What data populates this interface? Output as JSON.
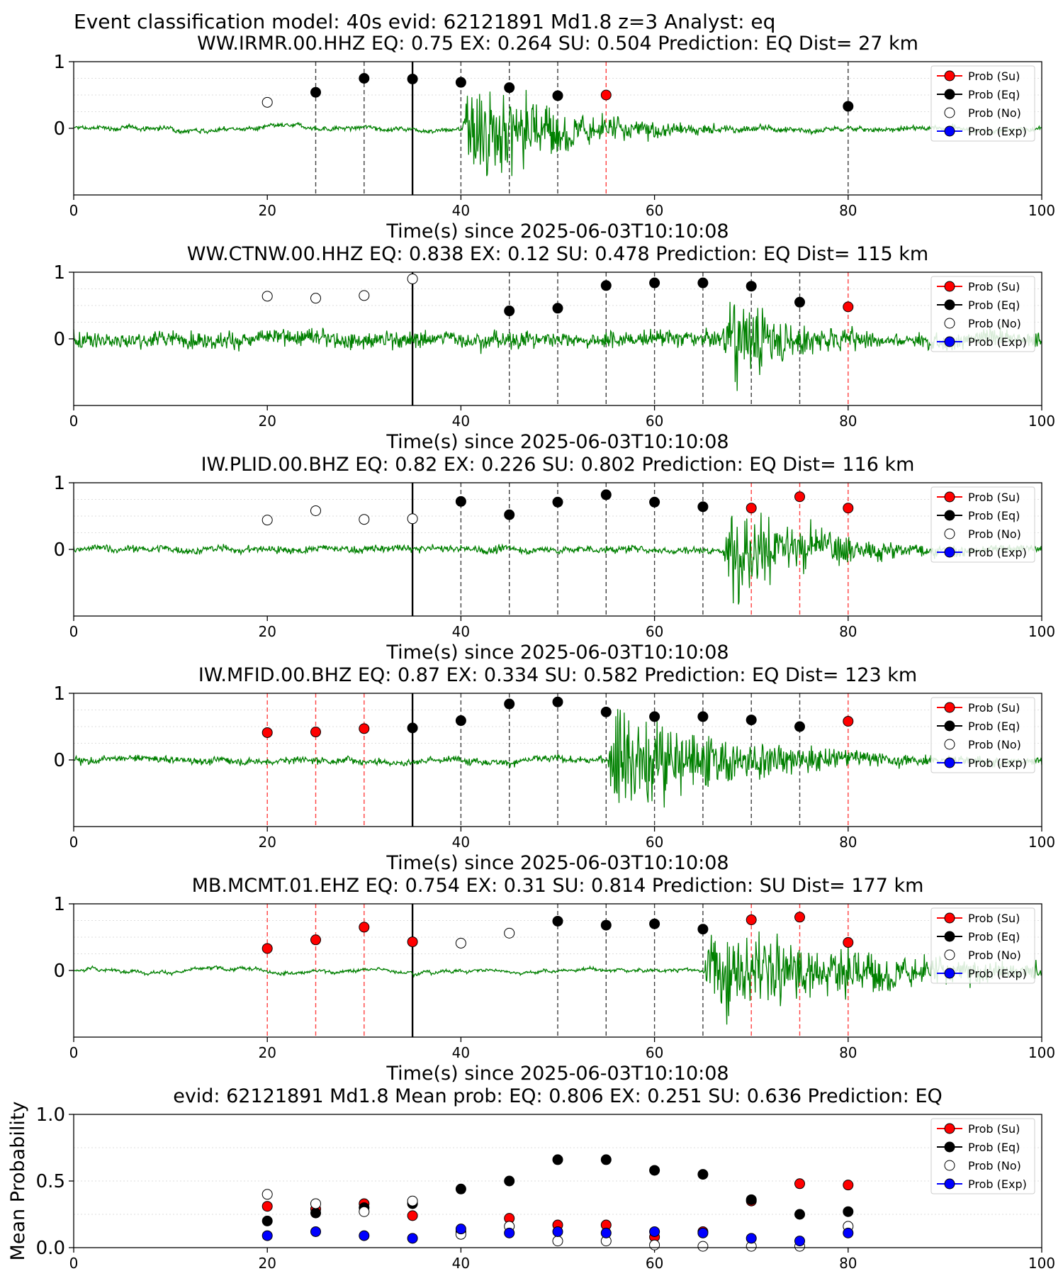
{
  "suptitle": "Event classification model: 40s evid: 62121891 Md1.8 z=3 Analyst: eq",
  "legend": [
    "Prob (Su)",
    "Prob (Eq)",
    "Prob (No)",
    "Prob (Exp)"
  ],
  "colors": {
    "su": "#ff0000",
    "eq": "#000000",
    "no": "#ffffff",
    "exp": "#0000ff",
    "trace": "#008000"
  },
  "chart_data": [
    {
      "type": "line",
      "title": "WW.IRMR.00.HHZ   EQ: 0.75  EX: 0.264  SU: 0.504   Prediction: EQ    Dist= 27 km",
      "xlabel": "Time(s) since 2025-06-03T10:10:08",
      "ylabel": "",
      "xlim": [
        0,
        100
      ],
      "ylim": [
        -1,
        1
      ],
      "xticks": [
        "0",
        "20",
        "40",
        "60",
        "80",
        "100"
      ],
      "yticks": [
        "1",
        "0"
      ],
      "onset": 35,
      "arrival": 40,
      "amp": 0.9,
      "decay": 10,
      "noise": 0.03,
      "points": [
        {
          "t": 20,
          "p": 0.39,
          "cls": "no"
        },
        {
          "t": 25,
          "p": 0.54,
          "cls": "eq"
        },
        {
          "t": 30,
          "p": 0.75,
          "cls": "eq"
        },
        {
          "t": 35,
          "p": 0.74,
          "cls": "eq"
        },
        {
          "t": 40,
          "p": 0.69,
          "cls": "eq"
        },
        {
          "t": 45,
          "p": 0.61,
          "cls": "eq"
        },
        {
          "t": 50,
          "p": 0.49,
          "cls": "eq"
        },
        {
          "t": 55,
          "p": 0.5,
          "cls": "su"
        },
        {
          "t": 80,
          "p": 0.33,
          "cls": "eq"
        }
      ]
    },
    {
      "type": "line",
      "title": "WW.CTNW.00.HHZ   EQ: 0.838  EX: 0.12  SU: 0.478   Prediction: EQ    Dist= 115 km",
      "xlabel": "Time(s) since 2025-06-03T10:10:08",
      "ylabel": "",
      "xlim": [
        0,
        100
      ],
      "ylim": [
        -1,
        1
      ],
      "xticks": [
        "0",
        "20",
        "40",
        "60",
        "80",
        "100"
      ],
      "yticks": [
        "1",
        "0"
      ],
      "onset": 35,
      "arrival": 67,
      "amp": 0.85,
      "decay": 6,
      "noise": 0.12,
      "points": [
        {
          "t": 20,
          "p": 0.64,
          "cls": "no"
        },
        {
          "t": 25,
          "p": 0.61,
          "cls": "no"
        },
        {
          "t": 30,
          "p": 0.65,
          "cls": "no"
        },
        {
          "t": 35,
          "p": 0.9,
          "cls": "no"
        },
        {
          "t": 45,
          "p": 0.42,
          "cls": "eq"
        },
        {
          "t": 50,
          "p": 0.46,
          "cls": "eq"
        },
        {
          "t": 55,
          "p": 0.8,
          "cls": "eq"
        },
        {
          "t": 60,
          "p": 0.84,
          "cls": "eq"
        },
        {
          "t": 65,
          "p": 0.84,
          "cls": "eq"
        },
        {
          "t": 70,
          "p": 0.79,
          "cls": "eq"
        },
        {
          "t": 75,
          "p": 0.55,
          "cls": "eq"
        },
        {
          "t": 80,
          "p": 0.48,
          "cls": "su"
        }
      ]
    },
    {
      "type": "line",
      "title": "IW.PLID.00.BHZ   EQ: 0.82  EX: 0.226  SU: 0.802   Prediction: EQ    Dist= 116 km",
      "xlabel": "Time(s) since 2025-06-03T10:10:08",
      "ylabel": "",
      "xlim": [
        0,
        100
      ],
      "ylim": [
        -1,
        1
      ],
      "xticks": [
        "0",
        "20",
        "40",
        "60",
        "80",
        "100"
      ],
      "yticks": [
        "1",
        "0"
      ],
      "onset": 35,
      "arrival": 67,
      "amp": 0.8,
      "decay": 9,
      "noise": 0.05,
      "points": [
        {
          "t": 20,
          "p": 0.44,
          "cls": "no"
        },
        {
          "t": 25,
          "p": 0.58,
          "cls": "no"
        },
        {
          "t": 30,
          "p": 0.45,
          "cls": "no"
        },
        {
          "t": 35,
          "p": 0.46,
          "cls": "no"
        },
        {
          "t": 40,
          "p": 0.72,
          "cls": "eq"
        },
        {
          "t": 45,
          "p": 0.52,
          "cls": "eq"
        },
        {
          "t": 50,
          "p": 0.71,
          "cls": "eq"
        },
        {
          "t": 55,
          "p": 0.82,
          "cls": "eq"
        },
        {
          "t": 60,
          "p": 0.71,
          "cls": "eq"
        },
        {
          "t": 65,
          "p": 0.64,
          "cls": "eq"
        },
        {
          "t": 70,
          "p": 0.62,
          "cls": "su"
        },
        {
          "t": 75,
          "p": 0.79,
          "cls": "su"
        },
        {
          "t": 80,
          "p": 0.62,
          "cls": "su"
        }
      ]
    },
    {
      "type": "line",
      "title": "IW.MFID.00.BHZ   EQ: 0.87  EX: 0.334  SU: 0.582   Prediction: EQ    Dist= 123 km",
      "xlabel": "Time(s) since 2025-06-03T10:10:08",
      "ylabel": "",
      "xlim": [
        0,
        100
      ],
      "ylim": [
        -1,
        1
      ],
      "xticks": [
        "0",
        "20",
        "40",
        "60",
        "80",
        "100"
      ],
      "yticks": [
        "1",
        "0"
      ],
      "onset": 35,
      "arrival": 55,
      "amp": 0.95,
      "decay": 12,
      "noise": 0.05,
      "points": [
        {
          "t": 20,
          "p": 0.41,
          "cls": "su"
        },
        {
          "t": 25,
          "p": 0.42,
          "cls": "su"
        },
        {
          "t": 30,
          "p": 0.47,
          "cls": "su"
        },
        {
          "t": 35,
          "p": 0.48,
          "cls": "eq"
        },
        {
          "t": 40,
          "p": 0.59,
          "cls": "eq"
        },
        {
          "t": 45,
          "p": 0.84,
          "cls": "eq"
        },
        {
          "t": 50,
          "p": 0.87,
          "cls": "eq"
        },
        {
          "t": 55,
          "p": 0.72,
          "cls": "eq"
        },
        {
          "t": 60,
          "p": 0.65,
          "cls": "eq"
        },
        {
          "t": 65,
          "p": 0.65,
          "cls": "eq"
        },
        {
          "t": 70,
          "p": 0.6,
          "cls": "eq"
        },
        {
          "t": 75,
          "p": 0.5,
          "cls": "eq"
        },
        {
          "t": 80,
          "p": 0.58,
          "cls": "su"
        }
      ]
    },
    {
      "type": "line",
      "title": "MB.MCMT.01.EHZ   EQ: 0.754  EX: 0.31  SU: 0.814   Prediction: SU    Dist= 177 km",
      "xlabel": "Time(s) since 2025-06-03T10:10:08",
      "ylabel": "",
      "xlim": [
        0,
        100
      ],
      "ylim": [
        -1,
        1
      ],
      "xticks": [
        "0",
        "20",
        "40",
        "60",
        "80",
        "100"
      ],
      "yticks": [
        "1",
        "0"
      ],
      "onset": 35,
      "arrival": 65,
      "amp": 0.7,
      "decay": 20,
      "noise": 0.02,
      "points": [
        {
          "t": 20,
          "p": 0.33,
          "cls": "su"
        },
        {
          "t": 25,
          "p": 0.46,
          "cls": "su"
        },
        {
          "t": 30,
          "p": 0.65,
          "cls": "su"
        },
        {
          "t": 35,
          "p": 0.43,
          "cls": "su"
        },
        {
          "t": 40,
          "p": 0.41,
          "cls": "no"
        },
        {
          "t": 45,
          "p": 0.56,
          "cls": "no"
        },
        {
          "t": 50,
          "p": 0.74,
          "cls": "eq"
        },
        {
          "t": 55,
          "p": 0.68,
          "cls": "eq"
        },
        {
          "t": 60,
          "p": 0.7,
          "cls": "eq"
        },
        {
          "t": 65,
          "p": 0.62,
          "cls": "eq"
        },
        {
          "t": 70,
          "p": 0.76,
          "cls": "su"
        },
        {
          "t": 75,
          "p": 0.8,
          "cls": "su"
        },
        {
          "t": 80,
          "p": 0.42,
          "cls": "su"
        }
      ]
    },
    {
      "type": "scatter",
      "title": "evid: 62121891  Md1.8   Mean prob:   EQ: 0.806  EX: 0.251  SU: 0.636   Prediction: EQ",
      "xlabel": "",
      "ylabel": "Mean Probability",
      "xlim": [
        0,
        100
      ],
      "ylim": [
        0,
        1
      ],
      "xticks": [
        "0",
        "20",
        "40",
        "60",
        "80",
        "100"
      ],
      "yticks": [
        "1.0",
        "0.5",
        "0.0"
      ],
      "x": [
        20,
        25,
        30,
        35,
        40,
        45,
        50,
        55,
        60,
        65,
        70,
        75,
        80
      ],
      "series": [
        {
          "name": "Prob (Su)",
          "key": "su",
          "values": [
            0.31,
            0.29,
            0.33,
            0.24,
            0.12,
            0.22,
            0.17,
            0.17,
            0.08,
            0.12,
            0.35,
            0.48,
            0.47
          ]
        },
        {
          "name": "Prob (Eq)",
          "key": "eq",
          "values": [
            0.2,
            0.26,
            0.3,
            0.33,
            0.44,
            0.5,
            0.66,
            0.66,
            0.58,
            0.55,
            0.36,
            0.25,
            0.27
          ]
        },
        {
          "name": "Prob (No)",
          "key": "no",
          "values": [
            0.4,
            0.33,
            0.27,
            0.35,
            0.1,
            0.16,
            0.05,
            0.05,
            0.02,
            0.01,
            0.01,
            0.01,
            0.16
          ]
        },
        {
          "name": "Prob (Exp)",
          "key": "exp",
          "values": [
            0.09,
            0.12,
            0.09,
            0.07,
            0.14,
            0.11,
            0.12,
            0.11,
            0.12,
            0.11,
            0.07,
            0.05,
            0.11
          ]
        }
      ]
    }
  ]
}
